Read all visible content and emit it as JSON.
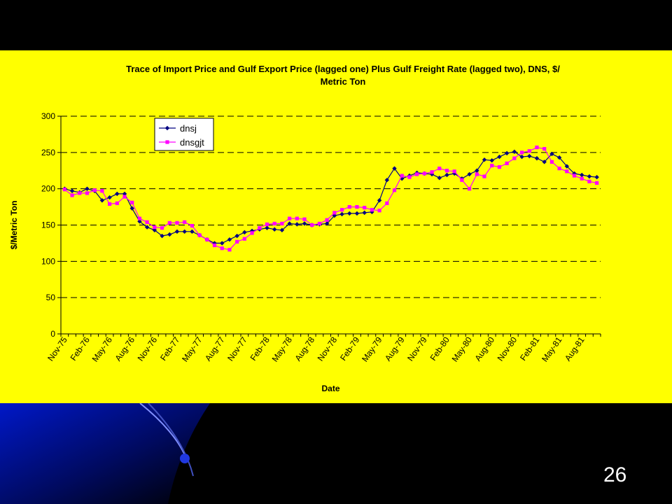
{
  "colors": {
    "slide_background": "#000000",
    "panel_background": "#ffff00",
    "dnsj": "#000080",
    "dnsgjt": "#ff00ff",
    "slide_number": "#ffffff"
  },
  "slide": {
    "number": "26"
  },
  "chart_data": {
    "type": "line",
    "title_line1": "Trace of Import Price and Gulf Export Price (lagged one) Plus Gulf Freight Rate (lagged two), DNS, $/",
    "title_line2": "Metric Ton",
    "xlabel": "Date",
    "ylabel": "$/Metric Ton",
    "ylim": [
      0,
      300
    ],
    "yticks": [
      "0",
      "50",
      "100",
      "150",
      "200",
      "250",
      "300"
    ],
    "xtick_labels": [
      "Nov-75",
      "Feb-76",
      "May-76",
      "Aug-76",
      "Nov-76",
      "Feb-77",
      "May-77",
      "Aug-77",
      "Nov-77",
      "Feb-78",
      "May-78",
      "Aug-78",
      "Nov-78",
      "Feb-79",
      "May-79",
      "Aug-79",
      "Nov-79",
      "Feb-80",
      "May-80",
      "Aug-80",
      "Nov-80",
      "Feb-81",
      "May-81",
      "Aug-81"
    ],
    "grid": "horizontal dashed",
    "legend_position": "top-left",
    "series": [
      {
        "name": "dnsj",
        "marker": "diamond",
        "values": [
          200,
          197,
          195,
          200,
          197,
          184,
          188,
          193,
          193,
          173,
          155,
          147,
          143,
          135,
          137,
          141,
          141,
          141,
          136,
          130,
          125,
          125,
          130,
          135,
          140,
          142,
          144,
          146,
          144,
          143,
          152,
          151,
          152,
          150,
          151,
          152,
          163,
          165,
          166,
          166,
          167,
          168,
          184,
          212,
          228,
          214,
          218,
          222,
          221,
          220,
          215,
          219,
          221,
          214,
          220,
          225,
          240,
          239,
          244,
          249,
          251,
          244,
          245,
          242,
          237,
          248,
          243,
          231,
          221,
          219,
          217,
          216
        ]
      },
      {
        "name": "dnsgjt",
        "marker": "square",
        "values": [
          199,
          191,
          194,
          194,
          198,
          197,
          179,
          180,
          189,
          181,
          159,
          154,
          147,
          146,
          153,
          153,
          154,
          149,
          136,
          130,
          122,
          118,
          116,
          127,
          131,
          139,
          146,
          151,
          152,
          152,
          159,
          159,
          158,
          150,
          152,
          157,
          167,
          171,
          175,
          175,
          174,
          171,
          170,
          180,
          198,
          218,
          216,
          220,
          221,
          223,
          228,
          225,
          224,
          212,
          200,
          220,
          217,
          232,
          230,
          235,
          242,
          250,
          252,
          257,
          255,
          237,
          228,
          224,
          218,
          214,
          210,
          208
        ]
      }
    ]
  }
}
